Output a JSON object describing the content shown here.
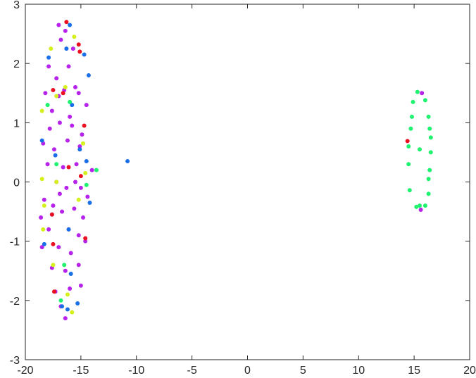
{
  "chart_data": {
    "type": "scatter",
    "xlim": [
      -20,
      20
    ],
    "ylim": [
      -3,
      3
    ],
    "xticks": [
      -20,
      -15,
      -10,
      -5,
      0,
      5,
      10,
      15,
      20
    ],
    "yticks": [
      -3,
      -2,
      -1,
      0,
      1,
      2,
      3
    ],
    "grid": false,
    "series": [
      {
        "color": "#b623ea",
        "x": [
          -16.4,
          -16.8,
          -17.9,
          -16.1,
          -15.5,
          -17.2,
          -18.2,
          -16.5,
          -15.2,
          -17.6,
          -16.9,
          -15.8,
          -18.4,
          -17.4,
          -16.2,
          -15.1,
          -18.0,
          -16.6,
          -15.4,
          -17.2,
          -16.3,
          -15.0,
          -18.3,
          -17.5,
          -16.7,
          -15.6,
          -14.8,
          -17.9,
          -16.1,
          -15.2,
          -18.5,
          -17.0,
          -15.9,
          -14.6,
          -17.6,
          -16.4,
          -15.2,
          -17.3,
          -16.0,
          -15.0,
          -16.4,
          -14.4,
          -14.0,
          -14.5,
          -15.7,
          -17.0,
          -16.0,
          -18.6,
          -15.5,
          -16.9,
          -14.9,
          -17.8,
          -16.8,
          -17.0,
          15.6,
          15.7
        ],
        "values": [
          2.55,
          2.4,
          1.95,
          1.95,
          1.6,
          1.75,
          1.5,
          1.55,
          1.5,
          1.2,
          1.0,
          0.95,
          0.65,
          0.55,
          0.7,
          0.6,
          0.3,
          0.25,
          0.3,
          0.0,
          -0.1,
          -0.1,
          -0.3,
          -0.4,
          -0.5,
          -0.45,
          -0.6,
          -0.8,
          -0.8,
          -0.9,
          -1.1,
          -1.1,
          -1.2,
          -1.0,
          -1.45,
          -1.5,
          -1.4,
          -1.85,
          -1.8,
          -1.75,
          -2.3,
          -0.25,
          0.2,
          1.3,
          2.25,
          1.45,
          1.1,
          -0.6,
          0.0,
          -0.2,
          0.8,
          0.9,
          -2.1,
          2.65,
          -0.47,
          1.5
        ]
      },
      {
        "color": "#1a6fe6",
        "x": [
          -16.0,
          -17.9,
          -14.7,
          -16.3,
          -14.3,
          -15.8,
          -18.5,
          -17.3,
          -15.1,
          -14.5,
          -17.6,
          -14.2,
          -16.1,
          -18.3,
          -15.3,
          -16.2,
          -16.7,
          -15.9,
          -10.8
        ],
        "values": [
          2.65,
          2.1,
          2.15,
          2.25,
          1.8,
          1.3,
          0.7,
          0.45,
          0.55,
          0.35,
          -0.55,
          -0.35,
          -0.8,
          -1.05,
          -2.05,
          -2.15,
          -2.1,
          -1.55,
          0.35
        ]
      },
      {
        "color": "#d6f01e",
        "x": [
          -15.6,
          -17.7,
          -18.5,
          -17.2,
          -16.4,
          -18.5,
          -18.3,
          -14.6,
          -15.2,
          -18.4,
          -17.5,
          -16.2,
          -15.8,
          -14.8,
          -17.2
        ],
        "values": [
          2.45,
          2.25,
          1.2,
          1.45,
          1.6,
          0.05,
          -0.4,
          0.15,
          -0.3,
          -0.8,
          -1.4,
          -1.9,
          -2.2,
          0.65,
          0.0
        ]
      },
      {
        "color": "#1ef26e",
        "x": [
          -16.5,
          -16.8,
          -13.6,
          -18.0,
          -16.0,
          -14.5,
          -17.2,
          15.3,
          16.0,
          16.3,
          16.5,
          16.5,
          16.4,
          16.3,
          16.0,
          15.5,
          15.2,
          14.6,
          14.5,
          14.5,
          14.7,
          14.8,
          14.9,
          15.5,
          16.3,
          16.4
        ],
        "values": [
          -1.4,
          -2.0,
          0.2,
          1.3,
          1.35,
          -0.05,
          0.3,
          1.52,
          1.38,
          1.1,
          0.75,
          0.5,
          0.2,
          -0.2,
          -0.4,
          -0.4,
          -0.42,
          -0.14,
          0.3,
          0.6,
          0.9,
          1.1,
          1.35,
          0.55,
          0.05,
          0.9
        ]
      },
      {
        "color": "#ea1020",
        "x": [
          -16.3,
          -15.2,
          -15.1,
          -17.5,
          -16.6,
          -14.7,
          -16.1,
          -15.0,
          -17.6,
          -14.6,
          -17.5,
          -17.4,
          14.4
        ],
        "values": [
          2.7,
          2.32,
          2.2,
          1.55,
          1.5,
          0.95,
          0.25,
          0.1,
          -0.55,
          -0.95,
          -1.05,
          -1.85,
          0.69
        ]
      }
    ]
  }
}
